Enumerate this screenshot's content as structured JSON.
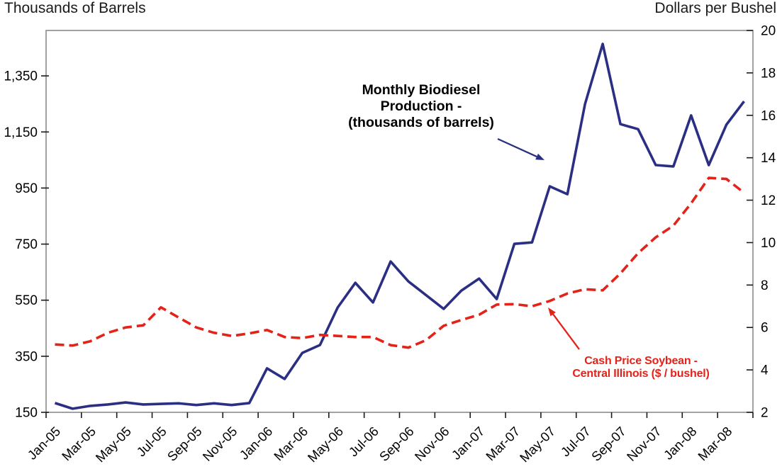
{
  "chart_data": {
    "type": "line",
    "left_axis_title": "Thousands of Barrels",
    "right_axis_title": "Dollars per Bushel",
    "grid": false,
    "legend_position": "none - series labeled by inline annotations with arrows",
    "months": [
      "Jan-05",
      "Feb-05",
      "Mar-05",
      "Apr-05",
      "May-05",
      "Jun-05",
      "Jul-05",
      "Aug-05",
      "Sep-05",
      "Oct-05",
      "Nov-05",
      "Dec-05",
      "Jan-06",
      "Feb-06",
      "Mar-06",
      "Apr-06",
      "May-06",
      "Jun-06",
      "Jul-06",
      "Aug-06",
      "Sep-06",
      "Oct-06",
      "Nov-06",
      "Dec-06",
      "Jan-07",
      "Feb-07",
      "Mar-07",
      "Apr-07",
      "May-07",
      "Jun-07",
      "Jul-07",
      "Aug-07",
      "Sep-07",
      "Oct-07",
      "Nov-07",
      "Dec-07",
      "Jan-08",
      "Feb-08",
      "Mar-08",
      "Apr-08"
    ],
    "x_axis": {
      "labels": [
        "Jan-05",
        "Mar-05",
        "May-05",
        "Jul-05",
        "Sep-05",
        "Nov-05",
        "Jan-06",
        "Mar-06",
        "May-06",
        "Jul-06",
        "Sep-06",
        "Nov-06",
        "Jan-07",
        "Mar-07",
        "May-07",
        "Jul-07",
        "Sep-07",
        "Nov-07",
        "Jan-08",
        "Mar-08"
      ],
      "label_rotation_deg": -45
    },
    "left_axis": {
      "min": 150,
      "max": 1512,
      "tick_values": [
        150,
        350,
        550,
        750,
        950,
        1150,
        1350
      ],
      "tick_labels": [
        "150",
        "350",
        "550",
        "750",
        "950",
        "1,150",
        "1,350"
      ]
    },
    "right_axis": {
      "min": 2,
      "max": 20,
      "tick_values": [
        2,
        4,
        6,
        8,
        10,
        12,
        14,
        16,
        18,
        20
      ],
      "tick_labels": [
        "2",
        "4",
        "6",
        "8",
        "10",
        "12",
        "14",
        "16",
        "18",
        "20"
      ]
    },
    "series": [
      {
        "name": "Monthly Biodiesel Production - (thousands of barrels)",
        "axis": "left",
        "line_style": "solid",
        "color": "#2b2f84",
        "values": [
          183,
          163,
          173,
          178,
          185,
          178,
          180,
          182,
          176,
          182,
          176,
          183,
          307,
          269,
          362,
          390,
          524,
          612,
          542,
          688,
          617,
          568,
          519,
          584,
          627,
          554,
          751,
          756,
          956,
          928,
          1250,
          1464,
          1178,
          1160,
          1032,
          1027,
          1209,
          1032,
          1176,
          1259
        ]
      },
      {
        "name": "Cash Price Soybean - Central Illinois ($ / bushel)",
        "axis": "right",
        "line_style": "dashed",
        "color": "#e3231a",
        "values": [
          5.2,
          5.15,
          5.35,
          5.75,
          6.0,
          6.1,
          6.95,
          6.47,
          6.0,
          5.75,
          5.6,
          5.72,
          5.88,
          5.55,
          5.5,
          5.65,
          5.6,
          5.55,
          5.55,
          5.17,
          5.05,
          5.4,
          6.08,
          6.35,
          6.6,
          7.08,
          7.1,
          7.0,
          7.25,
          7.6,
          7.8,
          7.75,
          8.55,
          9.5,
          10.25,
          10.8,
          11.85,
          13.05,
          13.0,
          12.35
        ]
      }
    ],
    "annotations": {
      "production": {
        "lines": [
          "Monthly Biodiesel",
          "Production -",
          "(thousands of barrels)"
        ],
        "color": "#000000"
      },
      "soybean": {
        "lines": [
          "Cash Price Soybean -",
          "Central Illinois ($ / bushel)"
        ],
        "color": "#e3231a"
      }
    }
  },
  "colors": {
    "production_line": "#2b2f84",
    "soybean_line": "#e3231a",
    "frame": "#8a8a8a",
    "tick": "#1a1a1a",
    "text": "#000000"
  }
}
